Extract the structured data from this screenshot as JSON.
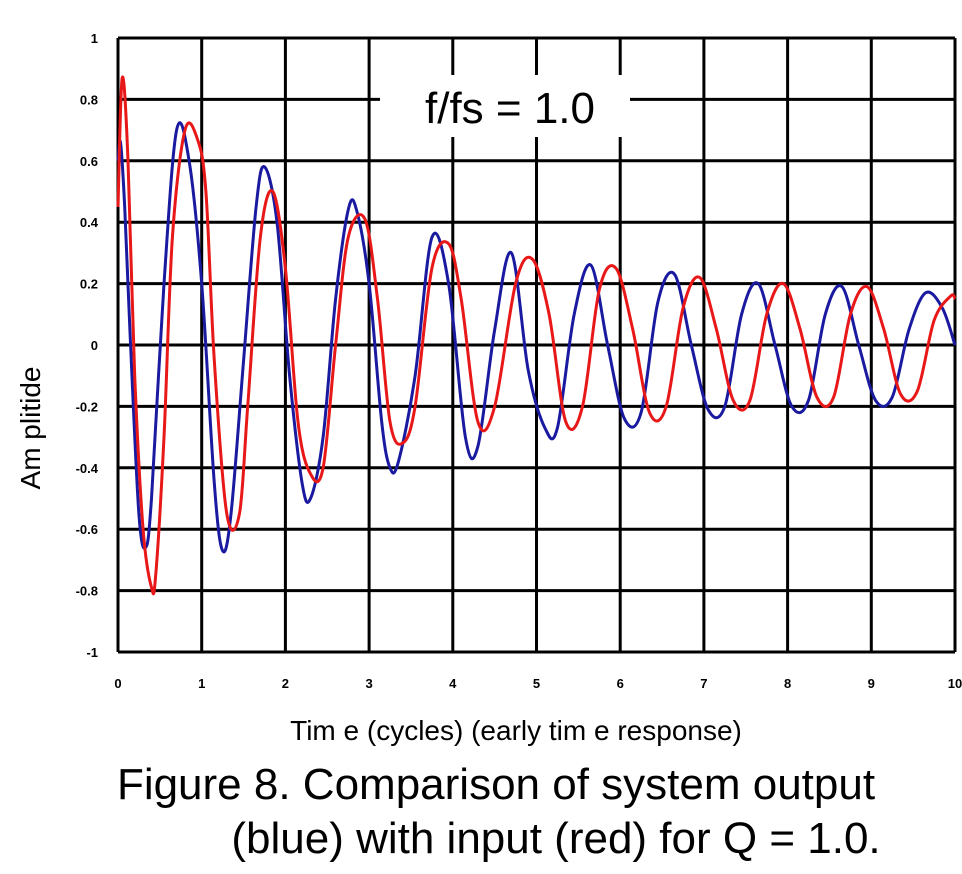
{
  "chart_data": {
    "type": "line",
    "title": "",
    "annotation": "f/fs = 1.0",
    "xlabel": "Tim e (cycles)  (early tim e response)",
    "ylabel": "Am plitide",
    "xlim": [
      0,
      10
    ],
    "ylim": [
      -1,
      1
    ],
    "x_ticks": [
      0,
      1,
      2,
      3,
      4,
      5,
      6,
      7,
      8,
      9,
      10
    ],
    "x_tick_labels": [
      "0",
      "1",
      "2",
      "3",
      "4",
      "5",
      "6",
      "7",
      "8",
      "9",
      "10"
    ],
    "y_ticks": [
      -1,
      -0.8,
      -0.6,
      -0.4,
      -0.2,
      0,
      0.2,
      0.4,
      0.6,
      0.8,
      1
    ],
    "y_tick_labels": [
      "-1",
      "-0.8",
      "-0.6",
      "-0.4",
      "-0.2",
      "0",
      "0.2",
      "0.4",
      "0.6",
      "0.8",
      "1"
    ],
    "grid": true,
    "series": [
      {
        "color": "#1a1aa0",
        "role": "system output",
        "x": [
          0,
          0.03,
          0.08,
          0.15,
          0.25,
          0.33,
          0.4,
          0.55,
          0.7,
          0.85,
          1.0,
          1.15,
          1.25,
          1.35,
          1.5,
          1.65,
          1.75,
          1.9,
          2.05,
          2.2,
          2.3,
          2.45,
          2.6,
          2.75,
          2.85,
          3.0,
          3.15,
          3.25,
          3.35,
          3.55,
          3.75,
          3.95,
          4.15,
          4.3,
          4.5,
          4.7,
          4.9,
          5.1,
          5.25,
          5.45,
          5.65,
          5.85,
          6.05,
          6.25,
          6.45,
          6.65,
          6.85,
          7.05,
          7.25,
          7.45,
          7.65,
          7.85,
          8.05,
          8.25,
          8.45,
          8.65,
          8.85,
          9.05,
          9.25,
          9.45,
          9.65,
          9.85,
          10.0
        ],
        "y": [
          0.6,
          0.66,
          0.45,
          0.0,
          -0.55,
          -0.66,
          -0.5,
          0.2,
          0.7,
          0.6,
          0.2,
          -0.45,
          -0.67,
          -0.55,
          -0.05,
          0.45,
          0.58,
          0.4,
          -0.1,
          -0.45,
          -0.5,
          -0.3,
          0.15,
          0.44,
          0.44,
          0.2,
          -0.25,
          -0.4,
          -0.38,
          -0.1,
          0.35,
          0.2,
          -0.3,
          -0.33,
          0.05,
          0.3,
          -0.08,
          -0.27,
          -0.27,
          0.1,
          0.26,
          0.0,
          -0.24,
          -0.22,
          0.14,
          0.23,
          0.0,
          -0.21,
          -0.2,
          0.1,
          0.2,
          0.0,
          -0.2,
          -0.18,
          0.1,
          0.19,
          0.0,
          -0.18,
          -0.17,
          0.05,
          0.17,
          0.12,
          0.0
        ]
      },
      {
        "color": "#e81818",
        "role": "input",
        "x": [
          0,
          0.05,
          0.12,
          0.2,
          0.3,
          0.4,
          0.45,
          0.55,
          0.65,
          0.8,
          0.95,
          1.05,
          1.15,
          1.3,
          1.45,
          1.55,
          1.7,
          1.85,
          2.0,
          2.15,
          2.3,
          2.45,
          2.6,
          2.75,
          2.95,
          3.1,
          3.25,
          3.4,
          3.55,
          3.75,
          3.95,
          4.1,
          4.3,
          4.5,
          4.75,
          4.95,
          5.15,
          5.35,
          5.55,
          5.75,
          5.95,
          6.15,
          6.35,
          6.55,
          6.75,
          6.95,
          7.15,
          7.35,
          7.55,
          7.75,
          7.95,
          8.15,
          8.35,
          8.55,
          8.75,
          8.95,
          9.15,
          9.35,
          9.55,
          9.75,
          9.95,
          10.0
        ],
        "y": [
          0.45,
          0.87,
          0.6,
          -0.1,
          -0.6,
          -0.79,
          -0.75,
          -0.3,
          0.35,
          0.7,
          0.67,
          0.5,
          -0.05,
          -0.55,
          -0.55,
          -0.2,
          0.35,
          0.5,
          0.25,
          -0.25,
          -0.42,
          -0.4,
          0.0,
          0.35,
          0.41,
          0.15,
          -0.25,
          -0.32,
          -0.2,
          0.25,
          0.33,
          0.15,
          -0.25,
          -0.2,
          0.2,
          0.28,
          0.1,
          -0.25,
          -0.2,
          0.18,
          0.25,
          0.05,
          -0.22,
          -0.2,
          0.12,
          0.22,
          0.05,
          -0.18,
          -0.18,
          0.1,
          0.2,
          0.05,
          -0.17,
          -0.17,
          0.1,
          0.19,
          0.05,
          -0.16,
          -0.15,
          0.08,
          0.16,
          0.15
        ]
      }
    ]
  },
  "caption": {
    "line1": "Figure 8. Comparison of system output",
    "line2": "(blue) with input (red) for Q = 1.0."
  }
}
